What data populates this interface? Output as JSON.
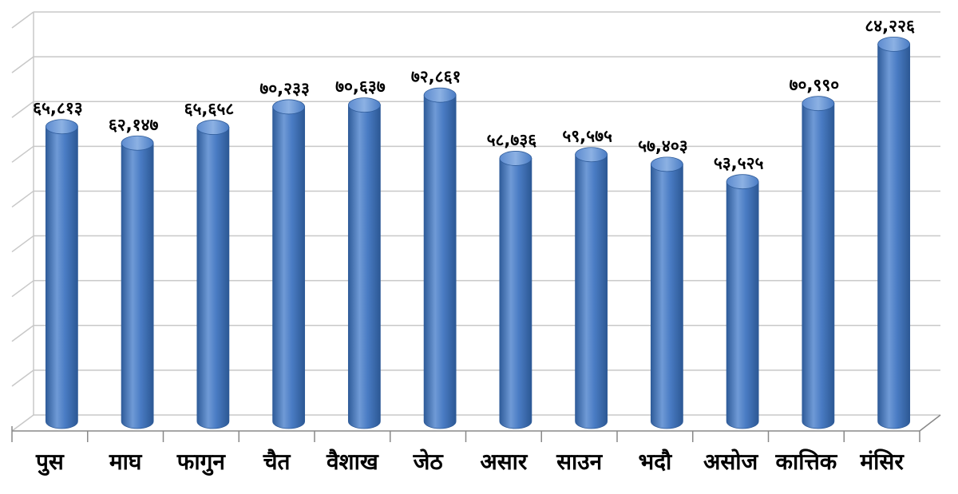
{
  "chart_data": {
    "type": "bar",
    "title": "",
    "xlabel": "",
    "ylabel": "",
    "categories": [
      "पुस",
      "माघ",
      "फागुन",
      "चैत",
      "वैशाख",
      "जेठ",
      "असार",
      "साउन",
      "भदौ",
      "असोज",
      "कात्तिक",
      "मंसिर"
    ],
    "values": [
      65813,
      62147,
      65658,
      70233,
      70637,
      72861,
      58736,
      59575,
      57403,
      53525,
      70990,
      84226
    ],
    "value_labels": [
      "६५,८१३",
      "६२,१४७",
      "६५,६५८",
      "७०,२३३",
      "७०,६३७",
      "७२,८६१",
      "५८,७३६",
      "५९,५७५",
      "५७,४०३",
      "५३,५२५",
      "७०,९९०",
      "८४,२२६"
    ],
    "ylim": [
      0,
      90000
    ],
    "grid": true,
    "bar_color": "#4a7cc4",
    "bar_edge_color": "#2f5c9a",
    "grid_color": "#c8c8c8"
  }
}
